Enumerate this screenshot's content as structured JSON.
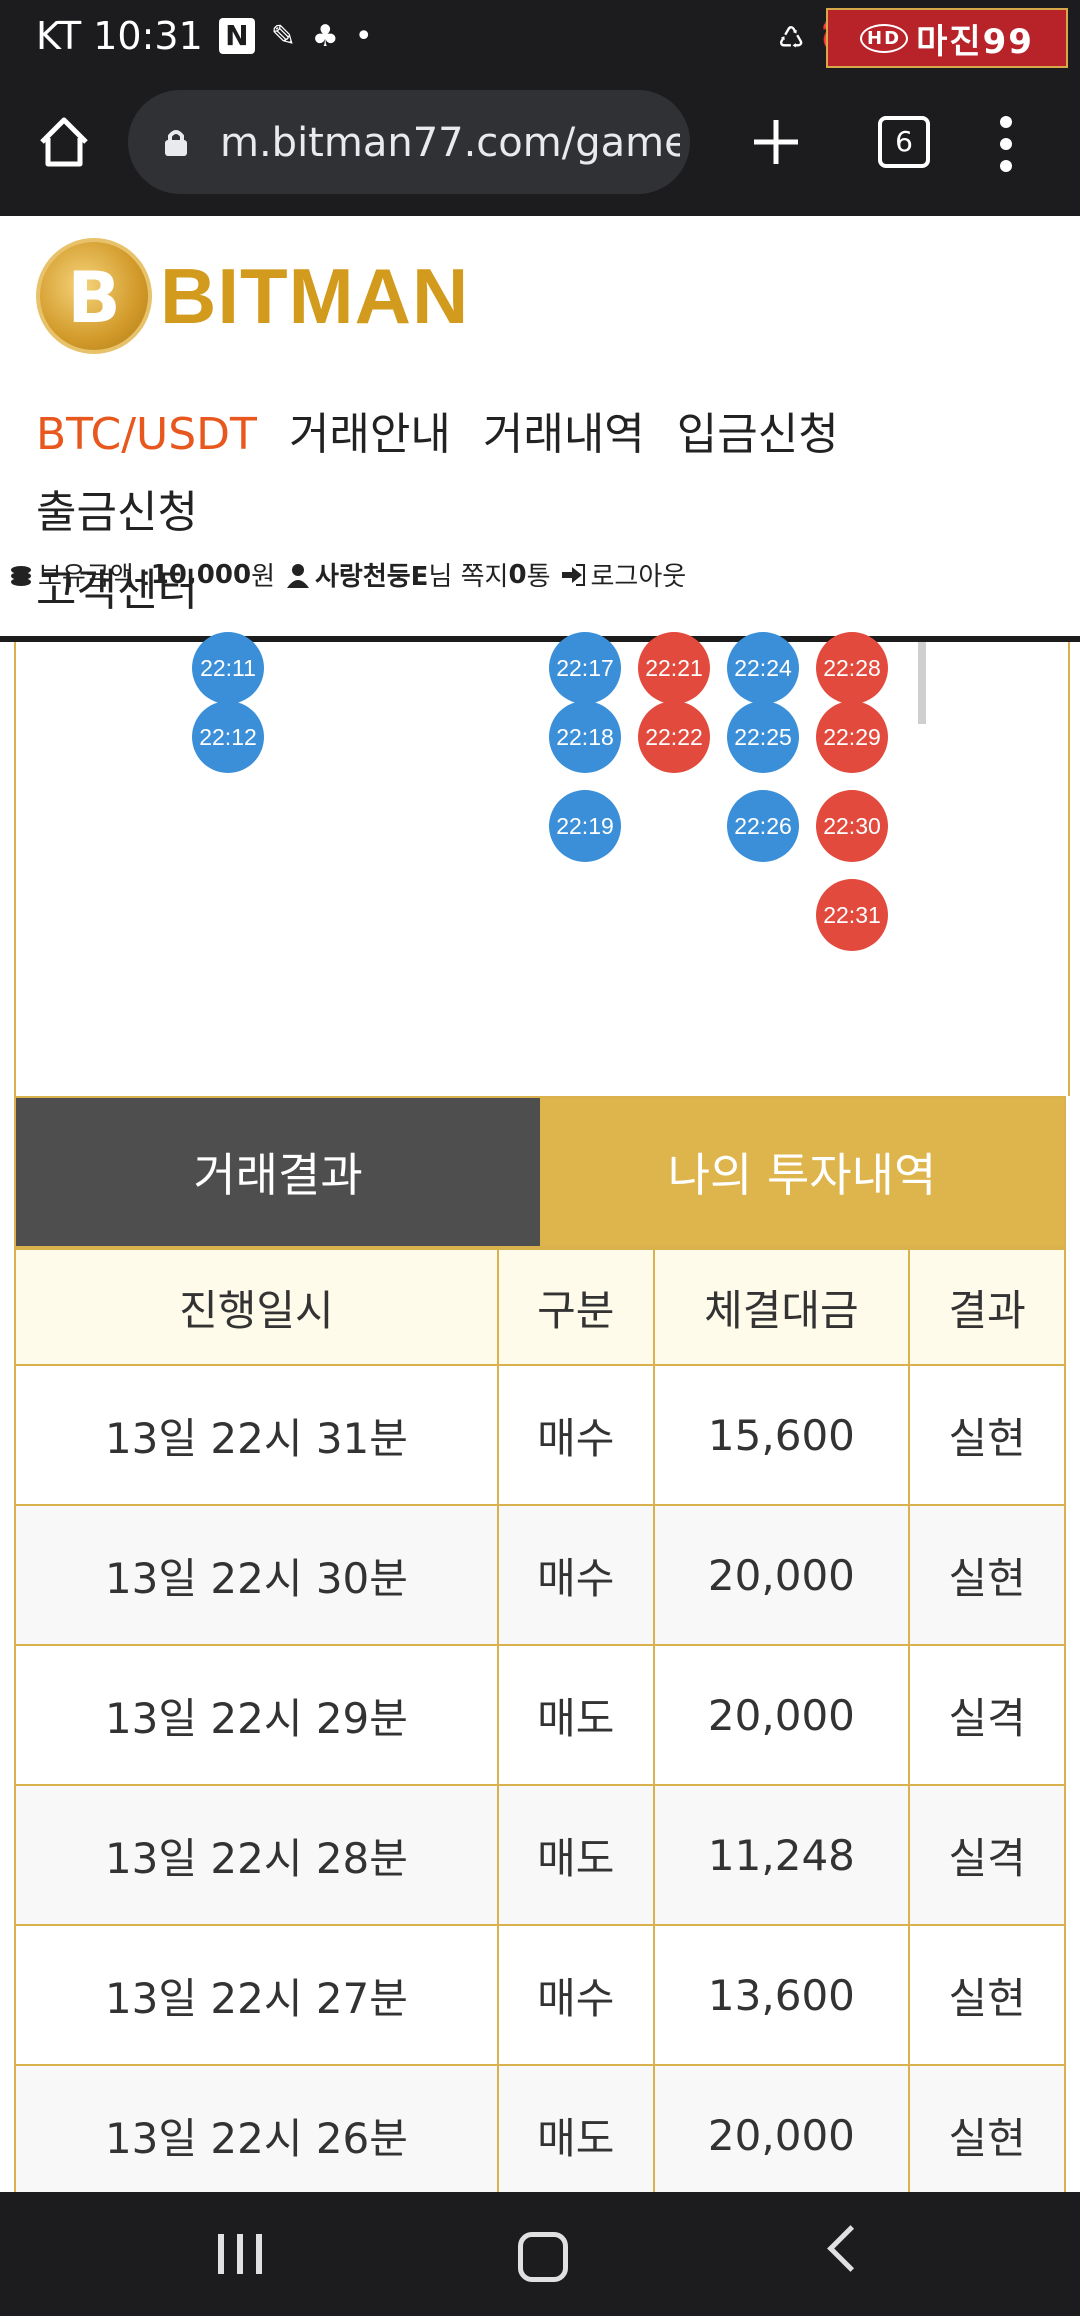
{
  "status_bar": {
    "carrier_time": "KT 10:31",
    "notif_icons": [
      "naver-icon",
      "pen-icon",
      "person-icon",
      "dot-icon"
    ],
    "right_icons": [
      "recycle-icon",
      "alarm-icon",
      "wifi-icon"
    ],
    "ad_badge_text": "마진99",
    "ad_badge_hd": "HD"
  },
  "browser": {
    "url": "m.bitman77.com/game_",
    "tab_count": "6"
  },
  "site": {
    "logo_text": "BITMAN",
    "logo_coin": "B",
    "nav": {
      "item_0": "BTC/USDT",
      "item_1": "거래안내",
      "item_2": "거래내역",
      "item_3": "입금신청",
      "item_4": "출금신청",
      "item_5": "고객센터"
    },
    "user": {
      "balance_label": "보유금액 : ",
      "balance_value": "10,000",
      "balance_unit": " 원",
      "username": "사랑천둥E",
      "honorific": " 님 쪽지 ",
      "messages": "0",
      "messages_unit": " 통",
      "logout": "로그아웃"
    }
  },
  "chart_dots": [
    {
      "time": "22:11",
      "color": "blue"
    },
    {
      "time": "22:12",
      "color": "blue"
    },
    {
      "time": "22:17",
      "color": "blue"
    },
    {
      "time": "22:18",
      "color": "blue"
    },
    {
      "time": "22:19",
      "color": "blue"
    },
    {
      "time": "22:21",
      "color": "red"
    },
    {
      "time": "22:22",
      "color": "red"
    },
    {
      "time": "22:24",
      "color": "blue"
    },
    {
      "time": "22:25",
      "color": "blue"
    },
    {
      "time": "22:26",
      "color": "blue"
    },
    {
      "time": "22:28",
      "color": "red"
    },
    {
      "time": "22:29",
      "color": "red"
    },
    {
      "time": "22:30",
      "color": "red"
    },
    {
      "time": "22:31",
      "color": "red"
    }
  ],
  "tabs": {
    "results": "거래결과",
    "my_investments": "나의 투자내역"
  },
  "table": {
    "headers": {
      "date": "진행일시",
      "type": "구분",
      "amount": "체결대금",
      "result": "결과"
    },
    "rows": [
      {
        "date": "13일 22시 31분",
        "type": "매수",
        "amount": "15,600",
        "result": "실현"
      },
      {
        "date": "13일 22시 30분",
        "type": "매수",
        "amount": "20,000",
        "result": "실현"
      },
      {
        "date": "13일 22시 29분",
        "type": "매도",
        "amount": "20,000",
        "result": "실격"
      },
      {
        "date": "13일 22시 28분",
        "type": "매도",
        "amount": "11,248",
        "result": "실격"
      },
      {
        "date": "13일 22시 27분",
        "type": "매수",
        "amount": "13,600",
        "result": "실현"
      },
      {
        "date": "13일 22시 26분",
        "type": "매도",
        "amount": "20,000",
        "result": "실현"
      }
    ]
  },
  "colors": {
    "accent_orange": "#e8571e",
    "gold": "#ddb54c",
    "buy_red": "#d22b2b",
    "sell_blue": "#2f8fcf",
    "dot_blue": "#3b8fd8",
    "dot_red": "#e34a3e"
  }
}
